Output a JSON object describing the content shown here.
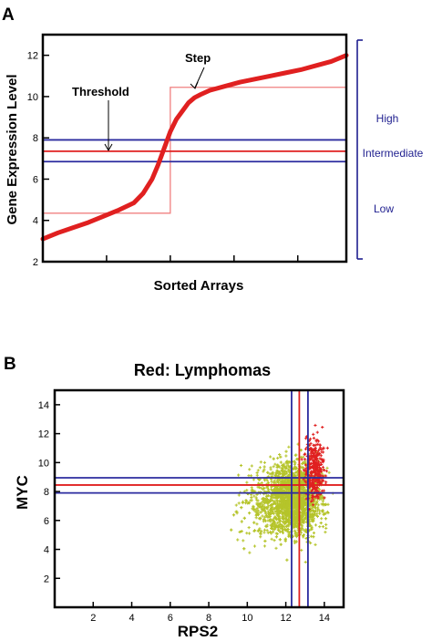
{
  "chart_data": [
    {
      "panel": "A",
      "type": "line",
      "title": "",
      "xlabel": "Sorted Arrays",
      "ylabel": "Gene Expression Level",
      "xlim": [
        0,
        1
      ],
      "ylim": [
        2,
        13
      ],
      "yticks": [
        2,
        4,
        6,
        8,
        10,
        12
      ],
      "grid": false,
      "series": [
        {
          "color": "#e02020",
          "x": [
            0,
            0.05,
            0.1,
            0.15,
            0.2,
            0.25,
            0.3,
            0.33,
            0.36,
            0.38,
            0.4,
            0.42,
            0.44,
            0.46,
            0.48,
            0.5,
            0.52,
            0.55,
            0.6,
            0.65,
            0.7,
            0.75,
            0.8,
            0.85,
            0.9,
            0.95,
            1.0
          ],
          "y": [
            3.1,
            3.4,
            3.65,
            3.9,
            4.2,
            4.5,
            4.85,
            5.3,
            6.0,
            6.7,
            7.5,
            8.3,
            8.9,
            9.3,
            9.7,
            9.95,
            10.1,
            10.3,
            10.5,
            10.7,
            10.85,
            11.0,
            11.15,
            11.3,
            11.5,
            11.7,
            12.0
          ]
        }
      ],
      "step": {
        "color": "#f08080",
        "x_break": 0.42,
        "low": 4.35,
        "high": 10.45
      },
      "threshold_lines": [
        {
          "y": 6.85,
          "color": "#2b2b9f"
        },
        {
          "y": 7.35,
          "color": "#e02020"
        },
        {
          "y": 7.9,
          "color": "#2b2b9f"
        }
      ],
      "annotations": {
        "step": "Step",
        "threshold": "Threshold"
      },
      "levels": [
        "High",
        "Intermediate",
        "Low"
      ]
    },
    {
      "panel": "B",
      "type": "scatter",
      "title": "Red: Lymphomas",
      "xlabel": "RPS2",
      "ylabel": "MYC",
      "xlim": [
        0,
        15
      ],
      "ylim": [
        0,
        15
      ],
      "xticks": [
        2,
        4,
        6,
        8,
        10,
        12,
        14
      ],
      "yticks": [
        2,
        4,
        6,
        8,
        10,
        12,
        14
      ],
      "grid": false,
      "series": [
        {
          "color": "#b5c42a",
          "center_x": 12.5,
          "center_y": 7.6,
          "spread_x": 0.7,
          "spread_y": 1.2,
          "count": 2500
        },
        {
          "color": "#e02020",
          "center_x": 13.5,
          "center_y": 9.6,
          "spread_x": 0.25,
          "spread_y": 1.1,
          "count": 350
        }
      ],
      "vertical_lines": [
        {
          "x": 12.3,
          "color": "#2b2b9f"
        },
        {
          "x": 12.7,
          "color": "#e02020"
        },
        {
          "x": 13.15,
          "color": "#2b2b9f"
        }
      ],
      "horizontal_lines": [
        {
          "y": 7.9,
          "color": "#2b2b9f"
        },
        {
          "y": 8.45,
          "color": "#e02020"
        },
        {
          "y": 8.95,
          "color": "#2b2b9f"
        }
      ]
    }
  ]
}
